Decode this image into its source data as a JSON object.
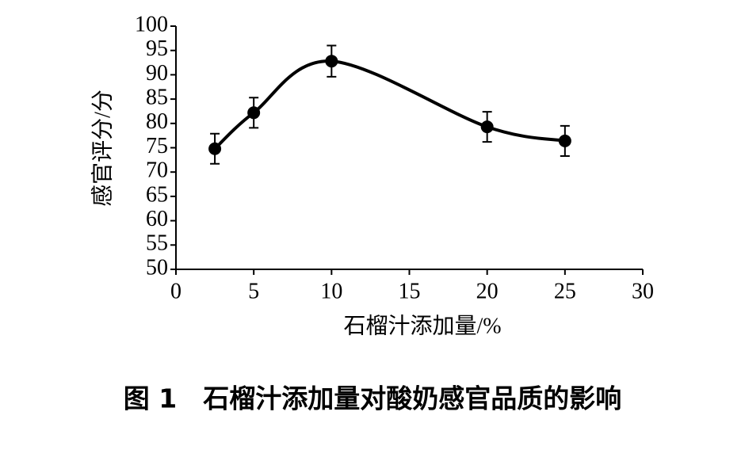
{
  "chart_data": {
    "type": "scatter",
    "title": "图 1　石榴汁添加量对酸奶感官品质的影响",
    "x_label": "石榴汁添加量/%",
    "y_label": "感官评分/分",
    "x": [
      2.5,
      5,
      10,
      20,
      25
    ],
    "values": [
      74.8,
      82.2,
      92.8,
      79.3,
      76.4
    ],
    "errors": [
      3.1,
      3.1,
      3.2,
      3.1,
      3.1
    ],
    "color": "#000000",
    "smooth": true,
    "grid": false,
    "xlim": [
      0,
      30
    ],
    "xticks": [
      0,
      5,
      10,
      15,
      20,
      25,
      30
    ],
    "ylim": [
      50,
      100
    ],
    "yticks": [
      50,
      55,
      60,
      65,
      70,
      75,
      80,
      85,
      90,
      95,
      100
    ]
  }
}
